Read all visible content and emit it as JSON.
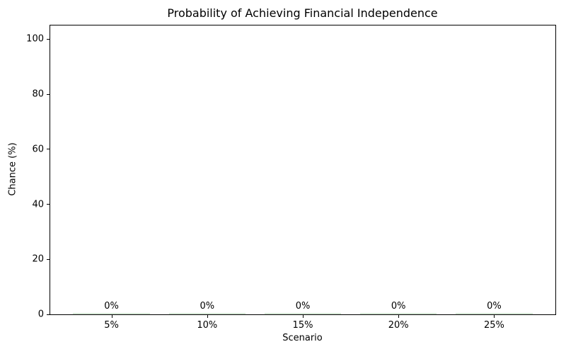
{
  "chart_data": {
    "type": "bar",
    "title": "Probability of Achieving Financial Independence",
    "xlabel": "Scenario",
    "ylabel": "Chance (%)",
    "categories": [
      "5%",
      "10%",
      "15%",
      "20%",
      "25%"
    ],
    "values": [
      0,
      0,
      0,
      0,
      0
    ],
    "bar_labels": [
      "0%",
      "0%",
      "0%",
      "0%",
      "0%"
    ],
    "yticks": [
      0,
      20,
      40,
      60,
      80,
      100
    ],
    "ylim": [
      0,
      105
    ],
    "grid": false,
    "legend_position": "none",
    "bar_color": "#d7e8d7",
    "axis_color": "#000000",
    "text_color": "#000000",
    "background_color": "#ffffff"
  }
}
